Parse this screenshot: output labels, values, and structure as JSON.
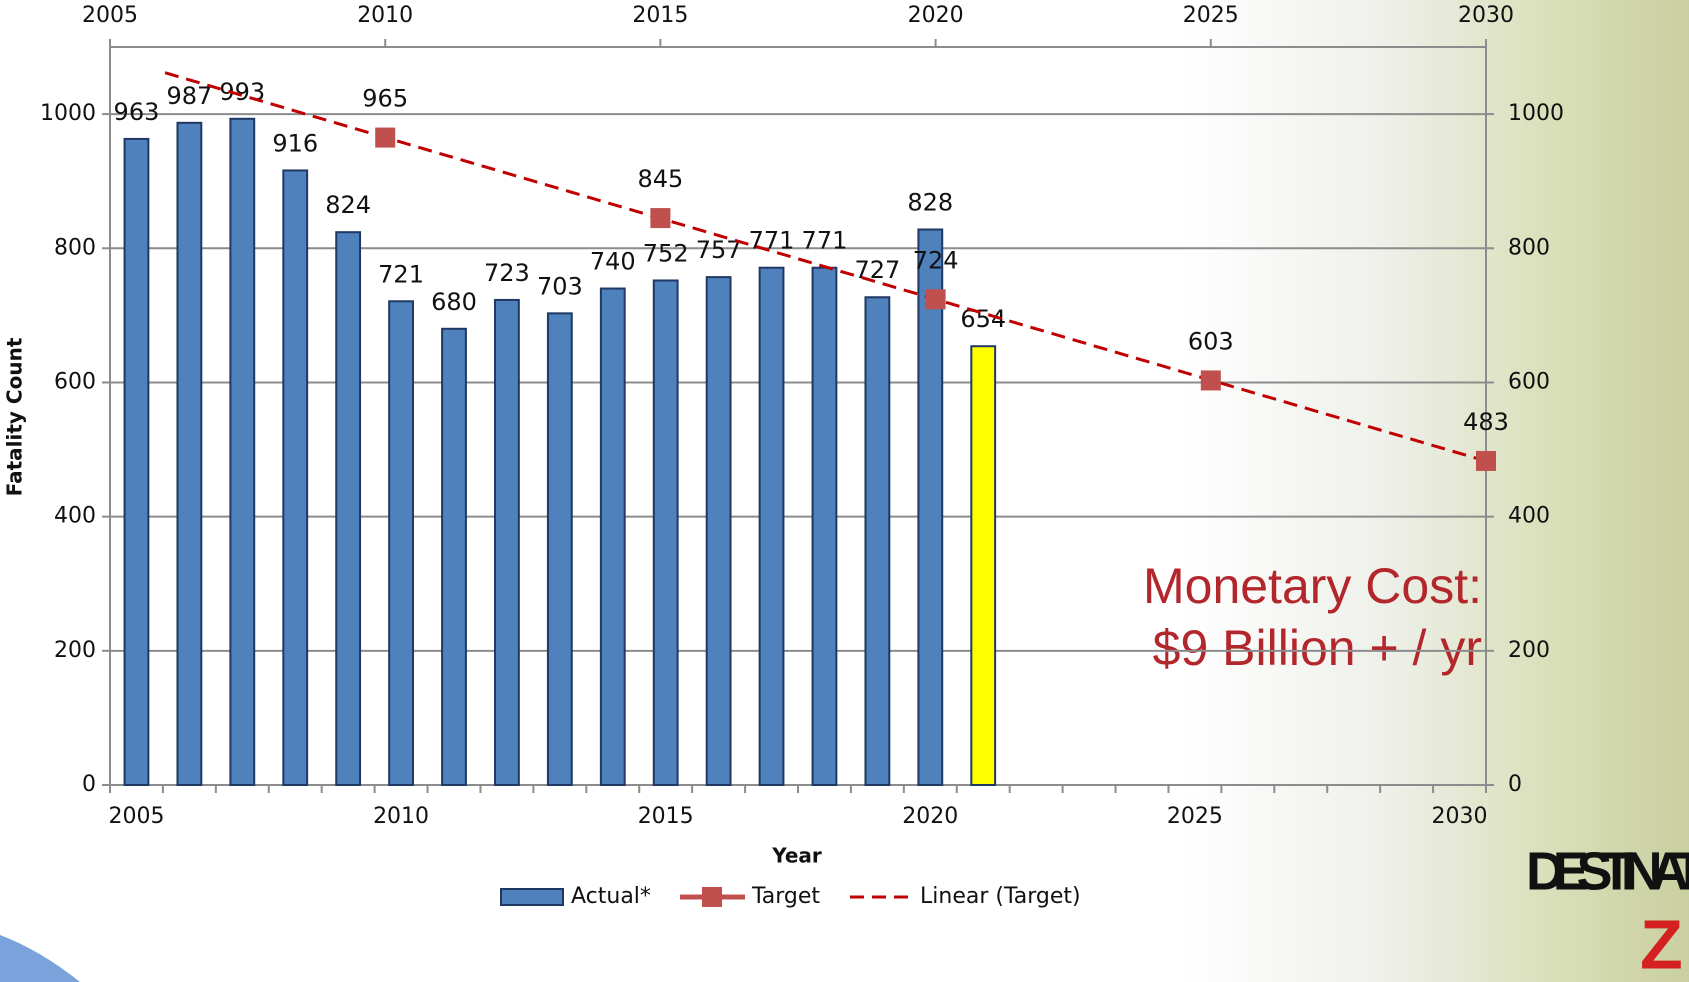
{
  "chart_data": {
    "type": "bar",
    "y_label": "Fatality Count",
    "x_label": "Year",
    "annotation": [
      "Monetary Cost:",
      "$9 Billion + / yr"
    ],
    "logo": [
      "DESTINAT",
      "Z"
    ],
    "xlim": [
      2004.5,
      2030.5
    ],
    "xticks": [
      2005,
      2010,
      2015,
      2020,
      2025,
      2030
    ],
    "x2lim": [
      2005,
      2030
    ],
    "x2ticks": [
      2005,
      2010,
      2015,
      2020,
      2025,
      2030
    ],
    "ylim": [
      0,
      1100
    ],
    "yticks": [
      0,
      200,
      400,
      600,
      800,
      1000
    ],
    "grid": true,
    "series": [
      {
        "name": "Actual*",
        "color": "#4f81bd",
        "bar_colors": [
          "#4f81bd",
          "#4f81bd",
          "#4f81bd",
          "#4f81bd",
          "#4f81bd",
          "#4f81bd",
          "#4f81bd",
          "#4f81bd",
          "#4f81bd",
          "#4f81bd",
          "#4f81bd",
          "#4f81bd",
          "#4f81bd",
          "#4f81bd",
          "#4f81bd",
          "#4f81bd",
          "#ffff00"
        ],
        "x": [
          2005,
          2006,
          2007,
          2008,
          2009,
          2010,
          2011,
          2012,
          2013,
          2014,
          2015,
          2016,
          2017,
          2018,
          2019,
          2020,
          2021
        ],
        "values": [
          963,
          987,
          993,
          916,
          824,
          721,
          680,
          723,
          703,
          740,
          752,
          757,
          771,
          771,
          727,
          828,
          654
        ]
      },
      {
        "name": "Target",
        "color": "#c0504d",
        "axis": "x2",
        "x": [
          2010,
          2015,
          2020,
          2025,
          2030
        ],
        "values": [
          965,
          845,
          724,
          603,
          483
        ]
      }
    ],
    "trendline": {
      "name": "Linear (Target)",
      "color": "#c00000",
      "of": 1,
      "backward": 4
    }
  }
}
